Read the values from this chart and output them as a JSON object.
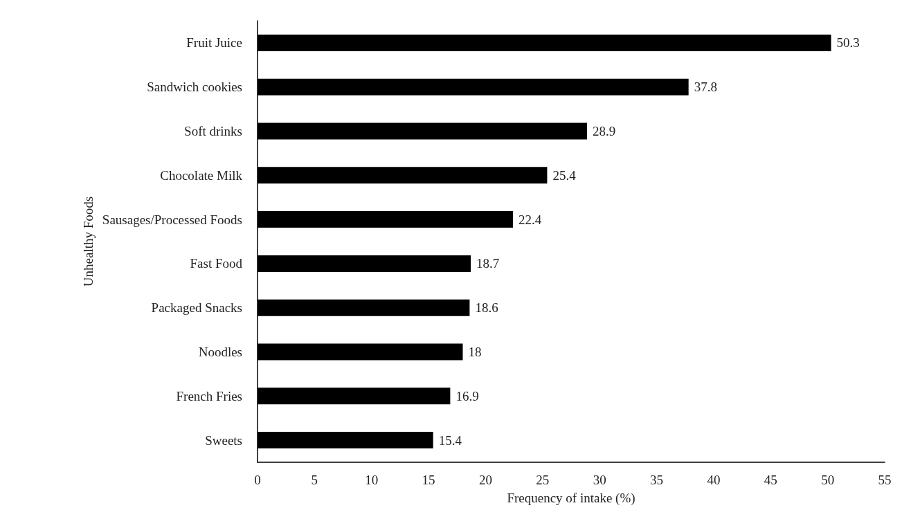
{
  "chart_data": {
    "type": "bar",
    "orientation": "horizontal",
    "xlabel": "Frequency of intake (%)",
    "ylabel": "Unhealthy Foods",
    "categories": [
      "Fruit Juice",
      "Sandwich cookies",
      "Soft drinks",
      "Chocolate Milk",
      "Sausages/Processed Foods",
      "Fast Food",
      "Packaged Snacks",
      "Noodles",
      "French Fries",
      "Sweets"
    ],
    "values": [
      50.3,
      37.8,
      28.9,
      25.4,
      22.4,
      18.7,
      18.6,
      18,
      16.9,
      15.4
    ],
    "color": "#000000",
    "xlim": [
      0,
      55
    ],
    "xticks": [
      0,
      5,
      10,
      15,
      20,
      25,
      30,
      35,
      40,
      45,
      50,
      55
    ],
    "grid": false,
    "data_labels": true
  }
}
